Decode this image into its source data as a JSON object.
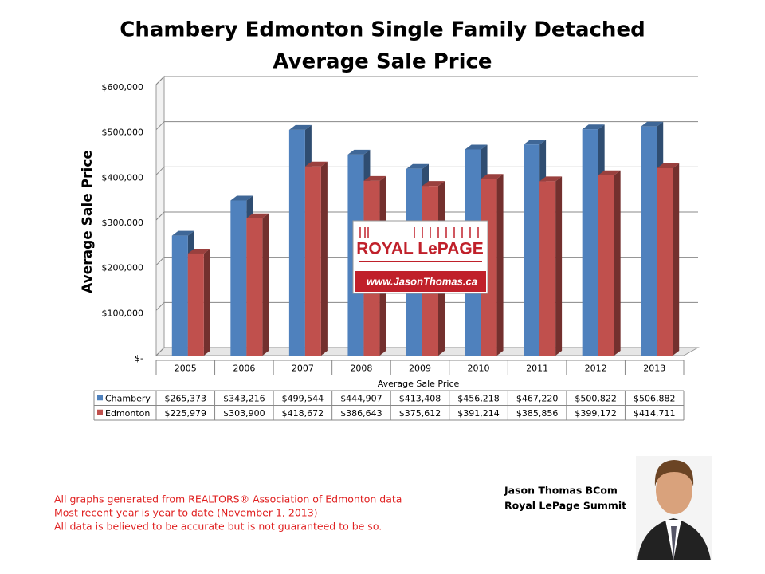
{
  "chart_data": {
    "type": "bar",
    "title": "Chambery Edmonton Single Family Detached",
    "subtitle": "Average Sale Price",
    "y_label": "Average Sale Price",
    "x_label": "Average Sale Price",
    "categories": [
      "2005",
      "2006",
      "2007",
      "2008",
      "2009",
      "2010",
      "2011",
      "2012",
      "2013"
    ],
    "series": [
      {
        "name": "Chambery",
        "color": "#4f81bd",
        "values": [
          265373,
          343216,
          499544,
          444907,
          413408,
          456218,
          467220,
          500822,
          506882
        ],
        "value_labels": [
          "$265,373",
          "$343,216",
          "$499,544",
          "$444,907",
          "$413,408",
          "$456,218",
          "$467,220",
          "$500,822",
          "$506,882"
        ]
      },
      {
        "name": "Edmonton",
        "color": "#c0504d",
        "values": [
          225979,
          303900,
          418672,
          386643,
          375612,
          391214,
          385856,
          399172,
          414711
        ],
        "value_labels": [
          "$225,979",
          "$303,900",
          "$418,672",
          "$386,643",
          "$375,612",
          "$391,214",
          "$385,856",
          "$399,172",
          "$414,711"
        ]
      }
    ],
    "ylim": [
      0,
      600000
    ],
    "yticks": [
      {
        "value": 0,
        "label": "$-"
      },
      {
        "value": 100000,
        "label": "$100,000"
      },
      {
        "value": 200000,
        "label": "$200,000"
      },
      {
        "value": 300000,
        "label": "$300,000"
      },
      {
        "value": 400000,
        "label": "$400,000"
      },
      {
        "value": 500000,
        "label": "$500,000"
      },
      {
        "value": 600000,
        "label": "$600,000"
      }
    ],
    "grid": true
  },
  "logo": {
    "brand": "ROYAL LePAGE",
    "website": "www.JasonThomas.ca"
  },
  "notes": [
    "All graphs generated from REALTORS® Association of Edmonton data",
    "Most recent year is year to date (November 1, 2013)",
    "All data is believed to be accurate but is not guaranteed to be so."
  ],
  "agent": [
    "Jason Thomas BCom",
    "Royal LePage Summit"
  ]
}
